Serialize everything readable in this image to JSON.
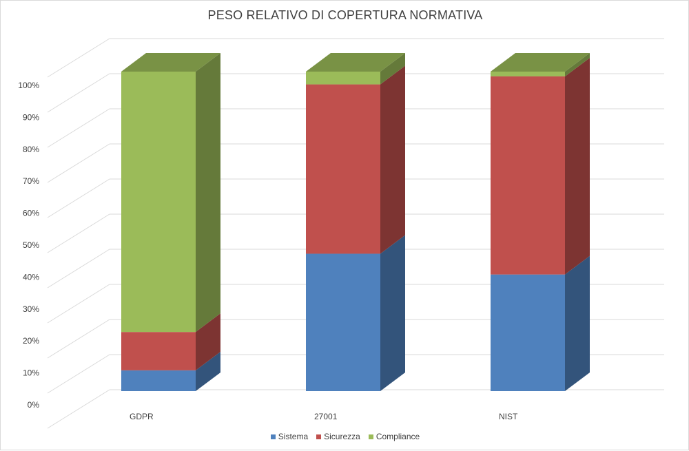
{
  "chart_data": {
    "type": "bar",
    "stacked": true,
    "percent_stacked": true,
    "three_d": true,
    "title": "PESO RELATIVO DI COPERTURA NORMATIVA",
    "categories": [
      "GDPR",
      "27001",
      "NIST"
    ],
    "series": [
      {
        "name": "Sistema",
        "color": "#4f81bd",
        "values": [
          6.5,
          43,
          36.5
        ]
      },
      {
        "name": "Sicurezza",
        "color": "#c0504d",
        "values": [
          12,
          53,
          62
        ]
      },
      {
        "name": "Compliance",
        "color": "#9bbb59",
        "values": [
          81.5,
          4,
          1.5
        ]
      }
    ],
    "y_ticks": [
      "0%",
      "10%",
      "20%",
      "30%",
      "40%",
      "50%",
      "60%",
      "70%",
      "80%",
      "90%",
      "100%"
    ],
    "ylim": [
      0,
      100
    ],
    "grid": true,
    "legend_position": "bottom"
  }
}
